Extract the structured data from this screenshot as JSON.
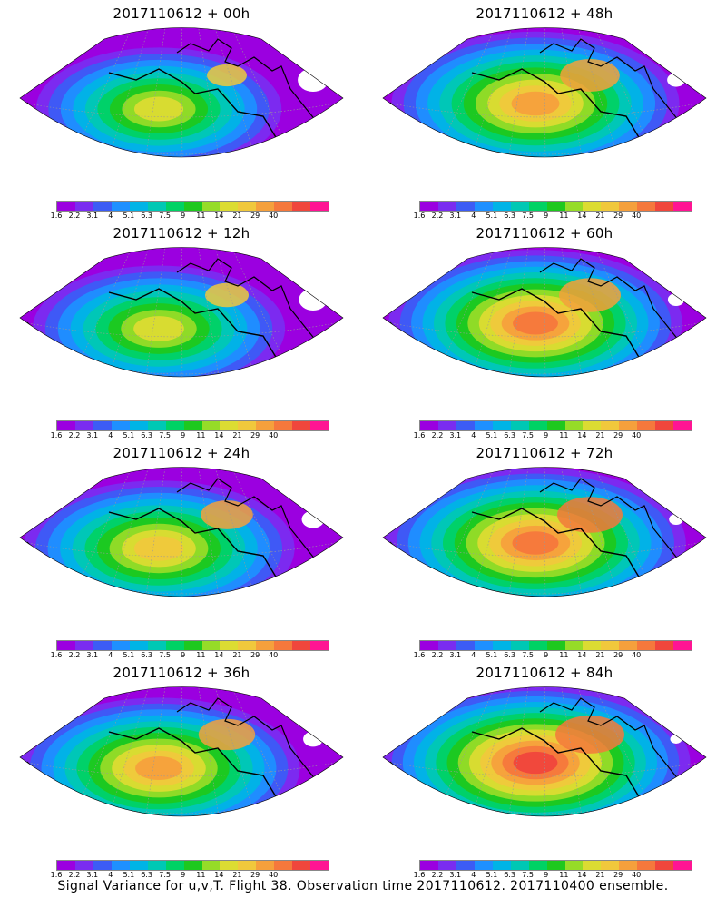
{
  "panels": [
    {
      "title": "2017110612 + 00h",
      "lead": "00h"
    },
    {
      "title": "2017110612 + 48h",
      "lead": "48h"
    },
    {
      "title": "2017110612 + 12h",
      "lead": "12h"
    },
    {
      "title": "2017110612 + 60h",
      "lead": "60h"
    },
    {
      "title": "2017110612 + 24h",
      "lead": "24h"
    },
    {
      "title": "2017110612 + 72h",
      "lead": "72h"
    },
    {
      "title": "2017110612 + 36h",
      "lead": "36h"
    },
    {
      "title": "2017110612 + 84h",
      "lead": "84h"
    }
  ],
  "colorbar": {
    "labels": [
      "1.6",
      "2.2",
      "3.1",
      "4",
      "5.1",
      "6.3",
      "7.5",
      "9",
      "11",
      "14",
      "21",
      "29",
      "40"
    ],
    "colors": [
      "#9b00e0",
      "#7a2cf0",
      "#3c5cf5",
      "#1e90ff",
      "#00b4e6",
      "#00c8b4",
      "#00d264",
      "#1ec81e",
      "#96dc28",
      "#dcdc32",
      "#f0c83c",
      "#f5a03c",
      "#f5783c",
      "#f0463c",
      "#ff1493"
    ]
  },
  "caption": "Signal Variance for u,v,T. Flight 38. Observation time 2017110612. 2017110400 ensemble."
}
